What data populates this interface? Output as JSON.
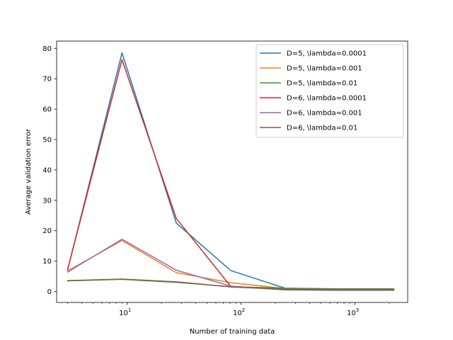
{
  "chart_data": {
    "type": "line",
    "title": "",
    "xlabel": "Number of training data",
    "ylabel": "Average validation error",
    "xscale": "log",
    "xlim": [
      2.4,
      2900
    ],
    "ylim": [
      -3.6,
      82.4
    ],
    "x_ticks": [
      {
        "value": 10,
        "base": "10",
        "exp": "1"
      },
      {
        "value": 100,
        "base": "10",
        "exp": "2"
      },
      {
        "value": 1000,
        "base": "10",
        "exp": "3"
      }
    ],
    "y_ticks": [
      0,
      10,
      20,
      30,
      40,
      50,
      60,
      70,
      80
    ],
    "grid": false,
    "legend_position": "top-right",
    "x": [
      3,
      9,
      27,
      81,
      243,
      729,
      2187
    ],
    "series": [
      {
        "name": "D=5, \\lambda=0.0001",
        "color": "#1f77b4",
        "values": [
          7.2,
          78.5,
          22.5,
          6.9,
          1.1,
          0.8,
          0.7
        ]
      },
      {
        "name": "D=5, \\lambda=0.001",
        "color": "#ff7f0e",
        "values": [
          6.8,
          16.8,
          6.2,
          2.9,
          1.0,
          0.8,
          0.7
        ]
      },
      {
        "name": "D=5, \\lambda=0.01",
        "color": "#2ca02c",
        "values": [
          3.5,
          4.0,
          3.0,
          1.6,
          1.1,
          0.9,
          0.9
        ]
      },
      {
        "name": "D=6, \\lambda=0.0001",
        "color": "#d62728",
        "values": [
          7.3,
          76.3,
          24.0,
          1.7,
          0.6,
          0.5,
          0.5
        ]
      },
      {
        "name": "D=6, \\lambda=0.001",
        "color": "#9467bd",
        "values": [
          6.4,
          17.2,
          7.0,
          1.8,
          0.5,
          0.4,
          0.4
        ]
      },
      {
        "name": "D=6, \\lambda=0.01",
        "color": "#8c564b",
        "values": [
          3.6,
          4.1,
          3.2,
          1.5,
          0.7,
          0.6,
          0.6
        ]
      }
    ]
  }
}
